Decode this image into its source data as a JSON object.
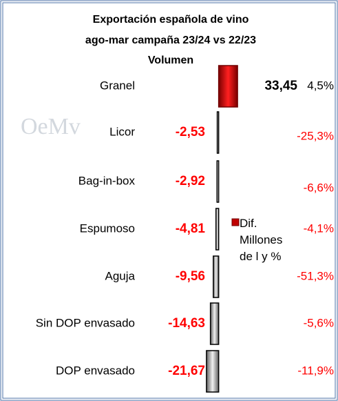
{
  "chart_data": {
    "type": "bar",
    "orientation": "horizontal",
    "title": [
      "Exportación española de vino",
      "ago-mar campaña 23/24 vs 22/23",
      "Volumen"
    ],
    "watermark": "OeMv",
    "categories": [
      "Granel",
      "Licor",
      "Bag-in-box",
      "Espumoso",
      "Aguja",
      "Sin DOP envasado",
      "DOP envasado"
    ],
    "series": [
      {
        "name": "Dif. Millones de l y %",
        "color": "#c00000",
        "negative_color": "#bfbfbf",
        "values": [
          33.45,
          -2.53,
          -2.92,
          -4.81,
          -9.56,
          -14.63,
          -21.67
        ],
        "value_labels": [
          "33,45",
          "-2,53",
          "-2,92",
          "-4,81",
          "-9,56",
          "-14,63",
          "-21,67"
        ]
      }
    ],
    "percent_labels": [
      "4,5%",
      "-25,3%",
      "-6,6%",
      "-4,1%",
      "-51,3%",
      "-5,6%",
      "-11,9%"
    ],
    "xlim": [
      -363,
      198
    ],
    "legend": "center"
  }
}
